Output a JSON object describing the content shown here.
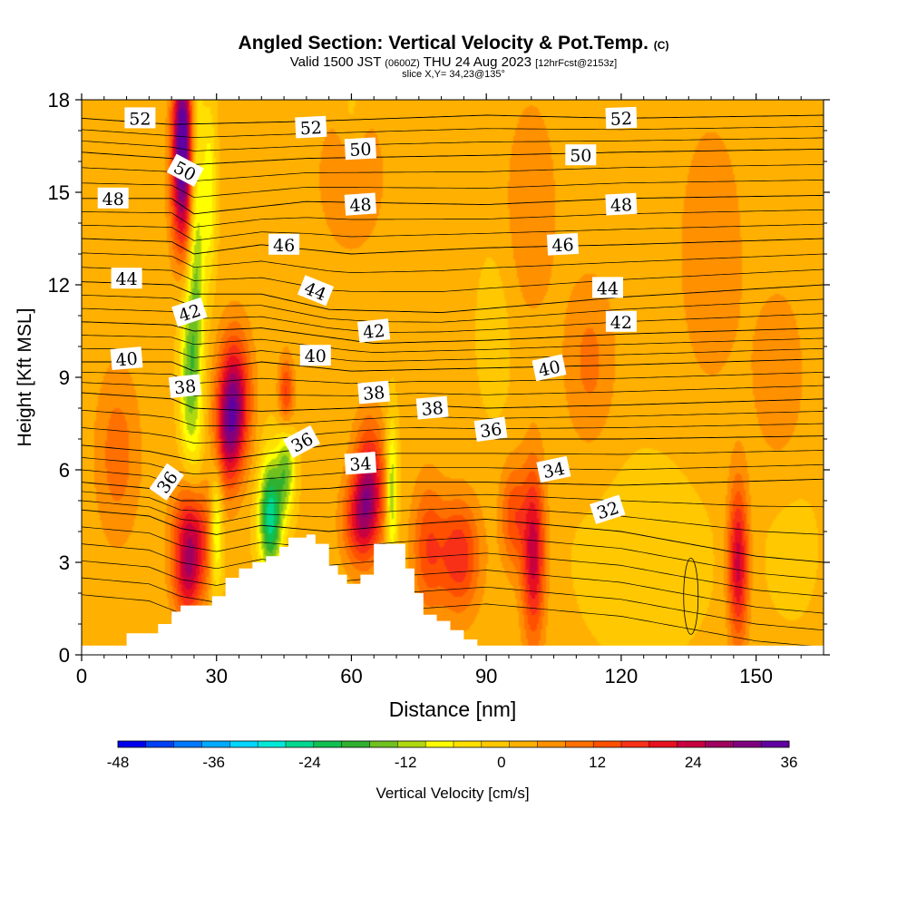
{
  "header": {
    "title": "Angled Section: Vertical Velocity & Pot.Temp.",
    "title_suffix": "(C)",
    "valid_prefix": "Valid 1500 JST",
    "valid_utc": "(0600Z)",
    "valid_date": "THU 24 Aug 2023",
    "forecast": "[12hrFcst@2153z]",
    "slice": "slice X,Y= 34,23@135°"
  },
  "chart_data": {
    "type": "heatmap",
    "xlabel": "Distance [nm]",
    "ylabel": "Height [Kft MSL]",
    "xlim": [
      0,
      165
    ],
    "ylim": [
      0,
      18
    ],
    "x_ticks": [
      0,
      30,
      60,
      90,
      120,
      150
    ],
    "y_ticks": [
      0,
      3,
      6,
      9,
      12,
      15,
      18
    ],
    "colorbar": {
      "label": "Vertical Velocity [cm/s]",
      "ticks": [
        -48,
        -36,
        -24,
        -12,
        0,
        12,
        24,
        36
      ],
      "range": [
        -48,
        36
      ],
      "colors": [
        "#0000ee",
        "#0040f5",
        "#0078ff",
        "#00aaff",
        "#00d6ff",
        "#00e8d8",
        "#00d890",
        "#10c050",
        "#30b030",
        "#70c020",
        "#b0d810",
        "#ffff00",
        "#ffe000",
        "#ffc800",
        "#ffb000",
        "#ff9000",
        "#ff7000",
        "#ff5000",
        "#f83018",
        "#e81020",
        "#c80040",
        "#a00060",
        "#800080",
        "#6000a0"
      ]
    },
    "background_value": 2,
    "vertical_velocity_features": [
      {
        "x": 22.5,
        "y": 17.2,
        "sx": 1.6,
        "sy": 1.4,
        "value": 30
      },
      {
        "x": 22.5,
        "y": 14.8,
        "sx": 1.8,
        "sy": 1.5,
        "value": 22
      },
      {
        "x": 25.5,
        "y": 12.5,
        "sx": 1.3,
        "sy": 4.5,
        "value": -16
      },
      {
        "x": 23.5,
        "y": 9.0,
        "sx": 1.3,
        "sy": 2.0,
        "value": -13
      },
      {
        "x": 34.0,
        "y": 8.3,
        "sx": 2.5,
        "sy": 1.5,
        "value": 24
      },
      {
        "x": 32.5,
        "y": 7.0,
        "sx": 2.0,
        "sy": 1.3,
        "value": 14
      },
      {
        "x": 24.5,
        "y": 3.8,
        "sx": 2.8,
        "sy": 1.2,
        "value": 24
      },
      {
        "x": 23.5,
        "y": 2.2,
        "sx": 2.2,
        "sy": 0.8,
        "value": 12
      },
      {
        "x": 30.0,
        "y": 4.0,
        "sx": 1.0,
        "sy": 1.4,
        "value": -14
      },
      {
        "x": 42.0,
        "y": 4.5,
        "sx": 1.8,
        "sy": 1.3,
        "value": -28
      },
      {
        "x": 45.5,
        "y": 6.0,
        "sx": 1.4,
        "sy": 1.0,
        "value": -16
      },
      {
        "x": 45.5,
        "y": 8.5,
        "sx": 1.2,
        "sy": 0.8,
        "value": 14
      },
      {
        "x": 64.0,
        "y": 5.5,
        "sx": 2.4,
        "sy": 1.4,
        "value": 22
      },
      {
        "x": 61.5,
        "y": 4.3,
        "sx": 2.6,
        "sy": 1.0,
        "value": 14
      },
      {
        "x": 69.0,
        "y": 5.3,
        "sx": 0.9,
        "sy": 1.6,
        "value": -16
      },
      {
        "x": 84.0,
        "y": 3.2,
        "sx": 3.2,
        "sy": 1.3,
        "value": 16
      },
      {
        "x": 77.0,
        "y": 3.5,
        "sx": 2.5,
        "sy": 1.5,
        "value": 12
      },
      {
        "x": 100.5,
        "y": 3.3,
        "sx": 1.8,
        "sy": 2.0,
        "value": 22
      },
      {
        "x": 96.0,
        "y": 4.5,
        "sx": 2.0,
        "sy": 1.2,
        "value": 12
      },
      {
        "x": 146.0,
        "y": 3.0,
        "sx": 1.6,
        "sy": 1.8,
        "value": 22
      },
      {
        "x": 125.0,
        "y": 3.2,
        "sx": 11.0,
        "sy": 2.4,
        "value": -3
      },
      {
        "x": 158.0,
        "y": 3.5,
        "sx": 5.0,
        "sy": 2.0,
        "value": -2
      },
      {
        "x": 8.0,
        "y": 6.5,
        "sx": 3.5,
        "sy": 2.0,
        "value": 8
      },
      {
        "x": 113.0,
        "y": 9.5,
        "sx": 4.0,
        "sy": 2.0,
        "value": 7
      },
      {
        "x": 140.0,
        "y": 13.0,
        "sx": 5.0,
        "sy": 3.0,
        "value": 6
      },
      {
        "x": 100.0,
        "y": 14.5,
        "sx": 4.0,
        "sy": 2.5,
        "value": 6
      },
      {
        "x": 155.0,
        "y": 9.0,
        "sx": 4.0,
        "sy": 2.0,
        "value": 6
      },
      {
        "x": 60.0,
        "y": 15.5,
        "sx": 6.0,
        "sy": 2.0,
        "value": 5
      },
      {
        "x": 28.5,
        "y": 15.0,
        "sx": 1.0,
        "sy": 2.0,
        "value": -10
      },
      {
        "x": 92.0,
        "y": 10.5,
        "sx": 3.0,
        "sy": 2.0,
        "value": -3
      },
      {
        "x": 60.0,
        "y": 17.5,
        "sx": 2.0,
        "sy": 1.0,
        "value": -4
      }
    ],
    "terrain_profile": [
      [
        10,
        0.7
      ],
      [
        13,
        0.7
      ],
      [
        16,
        0.7
      ],
      [
        17,
        1.0
      ],
      [
        20,
        1.4
      ],
      [
        22,
        1.6
      ],
      [
        25,
        1.6
      ],
      [
        29,
        1.9
      ],
      [
        32,
        2.5
      ],
      [
        35,
        2.8
      ],
      [
        38,
        3.0
      ],
      [
        41,
        3.2
      ],
      [
        44,
        3.5
      ],
      [
        46,
        3.8
      ],
      [
        50,
        3.9
      ],
      [
        52,
        3.6
      ],
      [
        55,
        2.9
      ],
      [
        57,
        2.6
      ],
      [
        59,
        2.3
      ],
      [
        62,
        2.6
      ],
      [
        65,
        3.6
      ],
      [
        69,
        3.6
      ],
      [
        72,
        2.8
      ],
      [
        74,
        2.0
      ],
      [
        76,
        1.3
      ],
      [
        79,
        1.1
      ],
      [
        82,
        0.8
      ],
      [
        85,
        0.5
      ],
      [
        88,
        0.3
      ]
    ],
    "potential_temperature_contours": {
      "unit": "C",
      "levels": [
        {
          "value": 52,
          "heights": [
            [
              0,
              17.4
            ],
            [
              20,
              17.2
            ],
            [
              50,
              17.3
            ],
            [
              90,
              17.5
            ],
            [
              120,
              17.4
            ],
            [
              165,
              17.5
            ]
          ]
        },
        {
          "value": 50,
          "heights": [
            [
              0,
              16.3
            ],
            [
              20,
              16.1
            ],
            [
              25,
              15.9
            ],
            [
              50,
              16.1
            ],
            [
              90,
              16.2
            ],
            [
              120,
              16.3
            ],
            [
              165,
              16.4
            ]
          ]
        },
        {
          "value": 48,
          "heights": [
            [
              0,
              14.8
            ],
            [
              20,
              14.8
            ],
            [
              25,
              14.3
            ],
            [
              50,
              14.7
            ],
            [
              90,
              14.6
            ],
            [
              120,
              14.8
            ],
            [
              165,
              14.9
            ]
          ]
        },
        {
          "value": 46,
          "heights": [
            [
              0,
              13.5
            ],
            [
              20,
              13.4
            ],
            [
              25,
              13.0
            ],
            [
              40,
              13.3
            ],
            [
              60,
              13.0
            ],
            [
              90,
              13.2
            ],
            [
              120,
              13.3
            ],
            [
              165,
              13.5
            ]
          ]
        },
        {
          "value": 44,
          "heights": [
            [
              0,
              12.1
            ],
            [
              20,
              12.0
            ],
            [
              25,
              11.7
            ],
            [
              40,
              11.7
            ],
            [
              55,
              11.2
            ],
            [
              80,
              11.1
            ],
            [
              120,
              11.6
            ],
            [
              165,
              12.0
            ]
          ]
        },
        {
          "value": 42,
          "heights": [
            [
              0,
              10.8
            ],
            [
              20,
              10.7
            ],
            [
              25,
              10.5
            ],
            [
              40,
              10.6
            ],
            [
              65,
              10.1
            ],
            [
              90,
              10.2
            ],
            [
              120,
              10.4
            ],
            [
              165,
              10.6
            ]
          ]
        },
        {
          "value": 40,
          "heights": [
            [
              0,
              9.5
            ],
            [
              20,
              9.5
            ],
            [
              25,
              9.2
            ],
            [
              40,
              9.5
            ],
            [
              60,
              9.2
            ],
            [
              90,
              9.3
            ],
            [
              120,
              9.4
            ],
            [
              165,
              9.6
            ]
          ]
        },
        {
          "value": 38,
          "heights": [
            [
              0,
              8.5
            ],
            [
              20,
              8.3
            ],
            [
              25,
              8.0
            ],
            [
              40,
              7.9
            ],
            [
              60,
              8.0
            ],
            [
              75,
              8.1
            ],
            [
              90,
              8.0
            ],
            [
              120,
              8.1
            ],
            [
              165,
              8.3
            ]
          ]
        },
        {
          "value": 36,
          "heights": [
            [
              0,
              6.8
            ],
            [
              15,
              6.6
            ],
            [
              25,
              6.3
            ],
            [
              35,
              6.4
            ],
            [
              45,
              6.6
            ],
            [
              55,
              6.8
            ],
            [
              70,
              7.0
            ],
            [
              90,
              7.0
            ],
            [
              120,
              7.0
            ],
            [
              165,
              7.1
            ]
          ]
        },
        {
          "value": 34,
          "heights": [
            [
              0,
              5.6
            ],
            [
              15,
              5.4
            ],
            [
              22,
              5.0
            ],
            [
              30,
              5.0
            ],
            [
              40,
              5.3
            ],
            [
              55,
              5.4
            ],
            [
              70,
              5.6
            ],
            [
              90,
              5.6
            ],
            [
              120,
              5.5
            ],
            [
              165,
              5.7
            ]
          ]
        },
        {
          "value": 32,
          "heights": [
            [
              0,
              4.7
            ],
            [
              15,
              4.5
            ],
            [
              22,
              4.1
            ],
            [
              30,
              3.9
            ],
            [
              40,
              4.2
            ],
            [
              55,
              4.0
            ],
            [
              70,
              4.2
            ],
            [
              90,
              4.4
            ],
            [
              120,
              4.0
            ],
            [
              150,
              3.2
            ],
            [
              165,
              3.0
            ]
          ]
        }
      ],
      "label_positions": [
        {
          "text": "52",
          "x": 13,
          "y": 17.4,
          "rot": 0
        },
        {
          "text": "52",
          "x": 51,
          "y": 17.1,
          "rot": -3
        },
        {
          "text": "52",
          "x": 120,
          "y": 17.4,
          "rot": -2
        },
        {
          "text": "50",
          "x": 23,
          "y": 15.7,
          "rot": 28
        },
        {
          "text": "50",
          "x": 62,
          "y": 16.4,
          "rot": -3
        },
        {
          "text": "50",
          "x": 111,
          "y": 16.2,
          "rot": 0
        },
        {
          "text": "48",
          "x": 7,
          "y": 14.8,
          "rot": 0
        },
        {
          "text": "48",
          "x": 62,
          "y": 14.6,
          "rot": -4
        },
        {
          "text": "48",
          "x": 120,
          "y": 14.6,
          "rot": -3
        },
        {
          "text": "46",
          "x": 45,
          "y": 13.3,
          "rot": 0
        },
        {
          "text": "46",
          "x": 107,
          "y": 13.3,
          "rot": -3
        },
        {
          "text": "44",
          "x": 10,
          "y": 12.2,
          "rot": 0
        },
        {
          "text": "44",
          "x": 52,
          "y": 11.8,
          "rot": 22
        },
        {
          "text": "44",
          "x": 117,
          "y": 11.9,
          "rot": 0
        },
        {
          "text": "42",
          "x": 24,
          "y": 11.1,
          "rot": -18
        },
        {
          "text": "42",
          "x": 65,
          "y": 10.5,
          "rot": -6
        },
        {
          "text": "42",
          "x": 120,
          "y": 10.8,
          "rot": 0
        },
        {
          "text": "40",
          "x": 10,
          "y": 9.6,
          "rot": -5
        },
        {
          "text": "40",
          "x": 52,
          "y": 9.7,
          "rot": 0
        },
        {
          "text": "40",
          "x": 104,
          "y": 9.3,
          "rot": -12
        },
        {
          "text": "38",
          "x": 23,
          "y": 8.7,
          "rot": -6
        },
        {
          "text": "38",
          "x": 65,
          "y": 8.5,
          "rot": -5
        },
        {
          "text": "38",
          "x": 78,
          "y": 8.0,
          "rot": -5
        },
        {
          "text": "36",
          "x": 19,
          "y": 5.6,
          "rot": -55
        },
        {
          "text": "36",
          "x": 49,
          "y": 6.9,
          "rot": -28
        },
        {
          "text": "36",
          "x": 91,
          "y": 7.3,
          "rot": -8
        },
        {
          "text": "34",
          "x": 62,
          "y": 6.2,
          "rot": -4
        },
        {
          "text": "34",
          "x": 105,
          "y": 6.0,
          "rot": -12
        },
        {
          "text": "32",
          "x": 117,
          "y": 4.7,
          "rot": -18
        }
      ]
    }
  }
}
